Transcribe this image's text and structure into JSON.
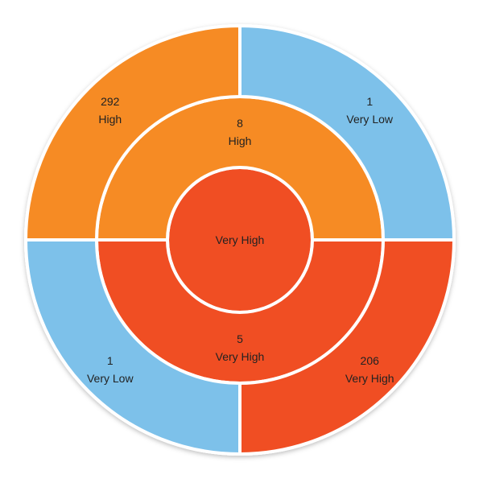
{
  "chart_data": {
    "type": "sunburst",
    "colors": {
      "Very High": "#F04E23",
      "High": "#F68B24",
      "Very Low": "#7DC1EA"
    },
    "root": {
      "label": "Very High"
    },
    "rings": [
      {
        "level": 1,
        "segments": [
          {
            "label": "High",
            "value": 8,
            "start_deg": 270,
            "end_deg": 450
          },
          {
            "label": "Very High",
            "value": 5,
            "start_deg": 90,
            "end_deg": 270
          }
        ]
      },
      {
        "level": 2,
        "segments": [
          {
            "label": "Very Low",
            "value": 1,
            "parent": "High",
            "start_deg": 0,
            "end_deg": 90
          },
          {
            "label": "Very High",
            "value": 206,
            "parent": "Very High",
            "start_deg": 90,
            "end_deg": 180
          },
          {
            "label": "Very Low",
            "value": 1,
            "parent": "Very High",
            "start_deg": 180,
            "end_deg": 270
          },
          {
            "label": "High",
            "value": 292,
            "parent": "High",
            "start_deg": 270,
            "end_deg": 360
          }
        ]
      }
    ]
  }
}
